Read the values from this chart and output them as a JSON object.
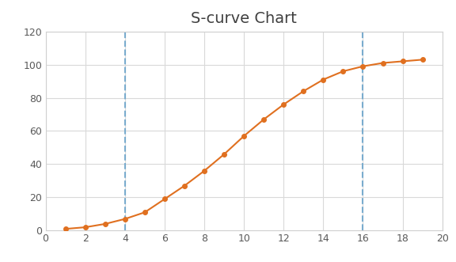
{
  "title": "S-curve Chart",
  "x": [
    1,
    2,
    3,
    4,
    5,
    6,
    7,
    8,
    9,
    10,
    11,
    12,
    13,
    14,
    15,
    16,
    17,
    18,
    19
  ],
  "y": [
    1,
    2,
    4,
    7,
    11,
    19,
    27,
    36,
    46,
    57,
    67,
    76,
    84,
    91,
    96,
    99,
    101,
    102,
    103
  ],
  "line_color": "#E07020",
  "marker_color": "#E07020",
  "vline_x": [
    4,
    16
  ],
  "vline_color": "#7AACCE",
  "xlim": [
    0,
    20
  ],
  "ylim": [
    0,
    120
  ],
  "xticks": [
    0,
    2,
    4,
    6,
    8,
    10,
    12,
    14,
    16,
    18,
    20
  ],
  "yticks": [
    0,
    20,
    40,
    60,
    80,
    100,
    120
  ],
  "grid_color": "#D9D9D9",
  "background_color": "#FFFFFF",
  "plot_bg_color": "#FFFFFF",
  "title_fontsize": 14,
  "tick_fontsize": 9,
  "spine_color": "#D0D0D0",
  "tick_color": "#595959"
}
